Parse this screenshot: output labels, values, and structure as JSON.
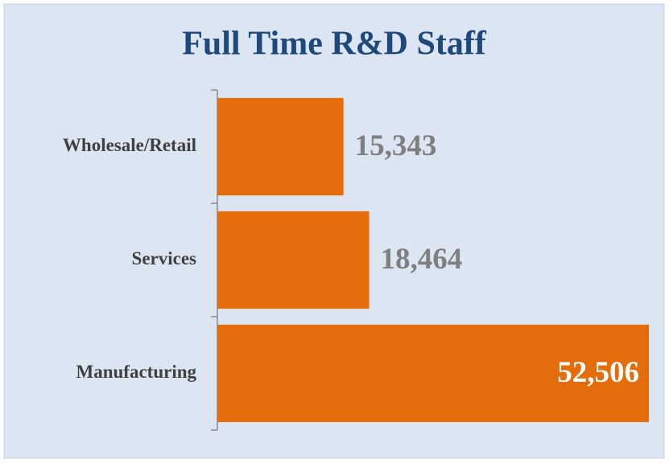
{
  "chart_data": {
    "type": "bar",
    "orientation": "horizontal",
    "title": "Full Time R&D Staff",
    "categories": [
      "Wholesale/Retail",
      "Services",
      "Manufacturing"
    ],
    "values": [
      15343,
      18464,
      52506
    ],
    "value_labels": [
      "15,343",
      "18,464",
      "52,506"
    ],
    "color": "#e46c0a"
  }
}
